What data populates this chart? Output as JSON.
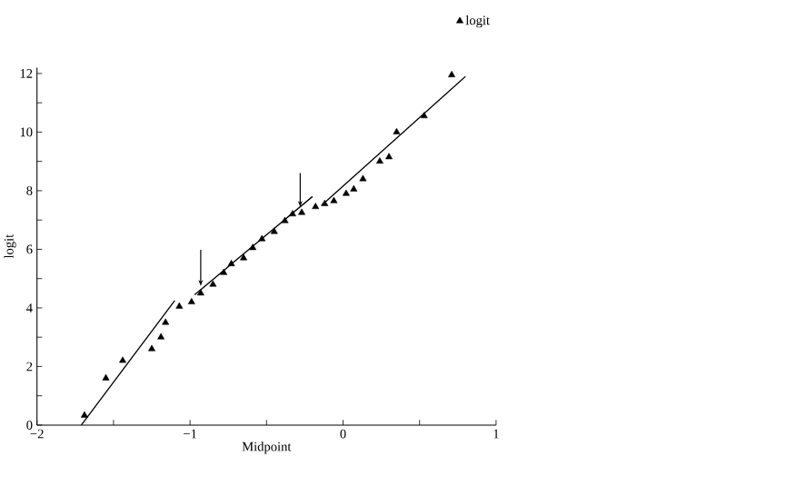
{
  "chart_data": {
    "type": "scatter",
    "xlabel": "Midpoint",
    "ylabel": "logit",
    "xlim": [
      -2,
      1
    ],
    "ylim": [
      0,
      12.2
    ],
    "xticks": [
      {
        "value": -2,
        "label": "−2"
      },
      {
        "value": -1.5,
        "label": null
      },
      {
        "value": -1,
        "label": "−1"
      },
      {
        "value": -0.5,
        "label": null
      },
      0,
      {
        "value": 0.5,
        "label": null
      },
      1
    ],
    "yticks": [
      0,
      {
        "value": 1,
        "label": null
      },
      2,
      {
        "value": 3,
        "label": null
      },
      4,
      {
        "value": 5,
        "label": null
      },
      6,
      {
        "value": 7,
        "label": null
      },
      8,
      {
        "value": 9,
        "label": null
      },
      10,
      {
        "value": 11,
        "label": null
      },
      12
    ],
    "legend": "top right",
    "grid": false,
    "series": [
      {
        "name": "logit",
        "marker": "triangle",
        "color": "#000000",
        "x": [
          -1.69,
          -1.55,
          -1.44,
          -1.25,
          -1.19,
          -1.16,
          -1.07,
          -0.99,
          -0.93,
          -0.85,
          -0.78,
          -0.73,
          -0.65,
          -0.59,
          -0.53,
          -0.45,
          -0.38,
          -0.33,
          -0.27,
          -0.18,
          -0.12,
          -0.06,
          0.02,
          0.07,
          0.13,
          0.24,
          0.3,
          0.35,
          0.53,
          0.71
        ],
        "values": [
          0.33,
          1.6,
          2.2,
          2.6,
          3.0,
          3.5,
          4.05,
          4.2,
          4.5,
          4.8,
          5.2,
          5.5,
          5.7,
          6.05,
          6.35,
          6.6,
          6.97,
          7.2,
          7.25,
          7.45,
          7.55,
          7.65,
          7.9,
          8.05,
          8.4,
          9.0,
          9.15,
          10.0,
          10.55,
          11.95
        ]
      },
      {
        "type": "line",
        "color": "#000000",
        "x": [
          -1.71,
          -1.1
        ],
        "values": [
          0,
          4.25
        ]
      },
      {
        "type": "line",
        "color": "#000000",
        "x": [
          -0.97,
          -0.2
        ],
        "values": [
          4.45,
          7.8
        ]
      },
      {
        "type": "line",
        "color": "#000000",
        "x": [
          -0.14,
          0.8
        ],
        "values": [
          7.5,
          11.9
        ]
      }
    ]
  }
}
